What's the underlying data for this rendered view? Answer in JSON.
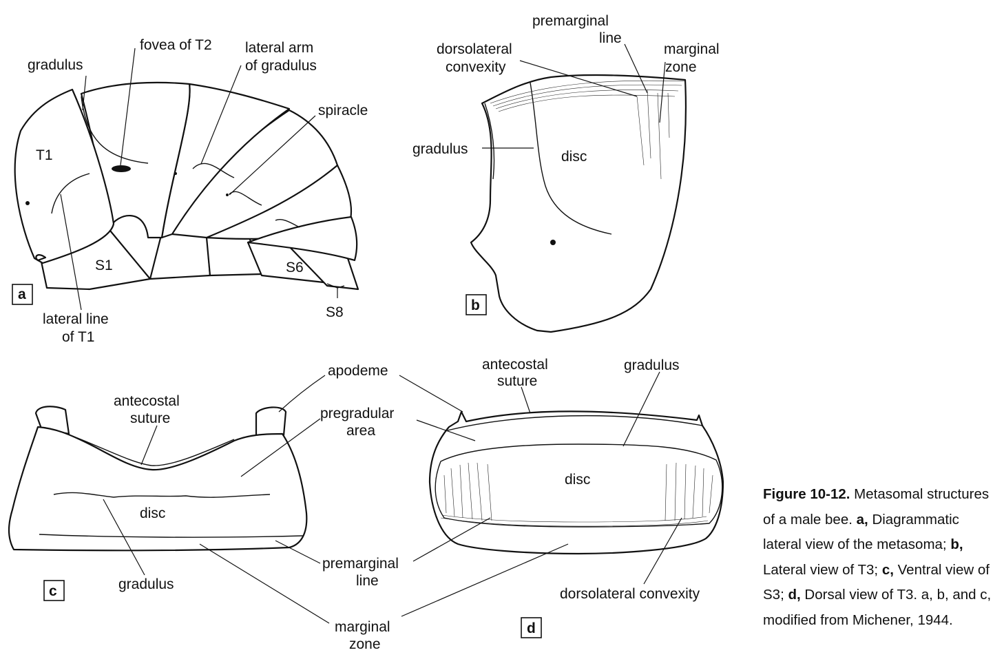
{
  "panel_a": {
    "id": "a",
    "labels": {
      "gradulus": "gradulus",
      "fovea": "fovea of T2",
      "lateral_arm_1": "lateral  arm",
      "lateral_arm_2": "of gradulus",
      "spiracle": "spiracle",
      "t1": "T1",
      "s1": "S1",
      "s6": "S6",
      "s8": "S8",
      "lateral_line_1": "lateral line",
      "lateral_line_2": "of T1"
    }
  },
  "panel_b": {
    "id": "b",
    "labels": {
      "premarginal_1": "premarginal",
      "premarginal_2": "line",
      "dorsolateral_1": "dorsolateral",
      "dorsolateral_2": "convexity",
      "marginal_1": "marginal",
      "marginal_2": "zone",
      "gradulus": "gradulus",
      "disc": "disc"
    }
  },
  "panel_c": {
    "id": "c",
    "labels": {
      "apodeme": "apodeme",
      "antecostal_1": "antecostal",
      "antecostal_2": "suture",
      "pregradular_1": "pregradular",
      "pregradular_2": "area",
      "disc": "disc",
      "gradulus": "gradulus",
      "premarginal_1": "premarginal",
      "premarginal_2": "line",
      "marginal_1": "marginal",
      "marginal_2": "zone"
    }
  },
  "panel_d": {
    "id": "d",
    "labels": {
      "antecostal_1": "antecostal",
      "antecostal_2": "suture",
      "gradulus": "gradulus",
      "disc": "disc",
      "dorsolateral": "dorsolateral  convexity"
    }
  },
  "caption": {
    "title": "Figure 10-12.",
    "intro": "Metasomal structures of a male bee.",
    "a_key": "a,",
    "a_text": "Diagrammatic lateral view of the metasoma;",
    "b_key": "b,",
    "b_text": "Lateral view of T3;",
    "c_key": "c,",
    "c_text": "Ventral view of S3;",
    "d_key": "d,",
    "d_text": "Dorsal view of T3. a, b, and c, modified from Michener, 1944."
  }
}
